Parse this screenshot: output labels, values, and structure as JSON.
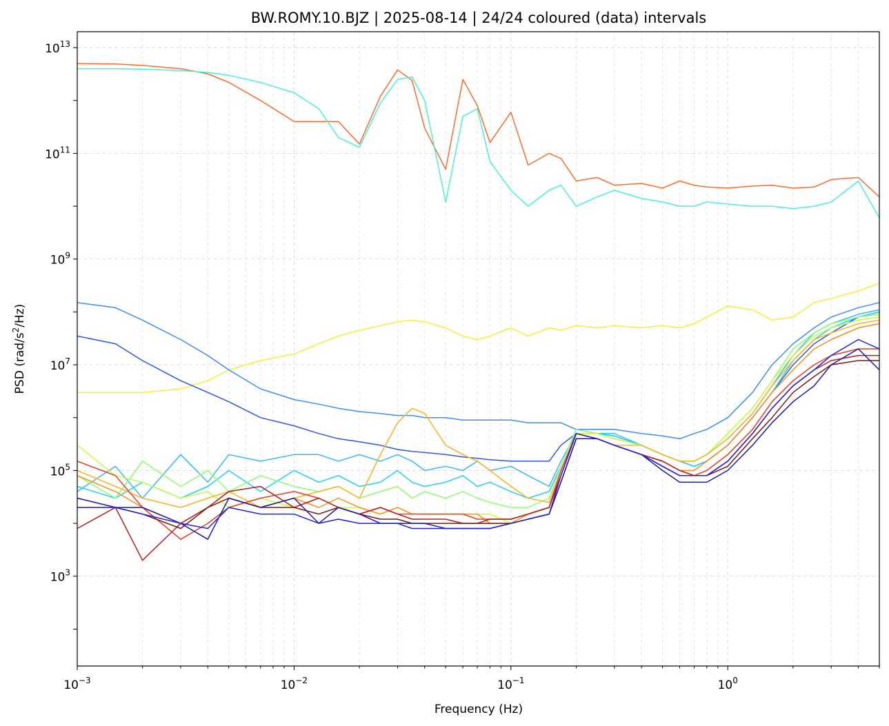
{
  "chart_data": {
    "type": "line",
    "title": "BW.ROMY.10.BJZ | 2025-08-14 | 24/24 coloured (data) intervals",
    "xlabel": "Frequency (Hz)",
    "ylabel": "PSD (rad/s²/Hz)",
    "xscale": "log",
    "yscale": "log",
    "xlim": [
      0.001,
      5.0
    ],
    "ylim": [
      20.0,
      20000000000000.0
    ],
    "grid": true,
    "legend": "none",
    "x_ticks": [
      {
        "value": 0.001,
        "base": "10",
        "exp": "−3"
      },
      {
        "value": 0.01,
        "base": "10",
        "exp": "−2"
      },
      {
        "value": 0.1,
        "base": "10",
        "exp": "−1"
      },
      {
        "value": 1,
        "base": "10",
        "exp": "0"
      }
    ],
    "y_ticks": [
      {
        "value": 1000,
        "base": "10",
        "exp": "3"
      },
      {
        "value": 100000,
        "base": "10",
        "exp": "5"
      },
      {
        "value": 10000000,
        "base": "10",
        "exp": "7"
      },
      {
        "value": 1000000000,
        "base": "10",
        "exp": "9"
      },
      {
        "value": 100000000000,
        "base": "10",
        "exp": "11"
      },
      {
        "value": 10000000000000,
        "base": "10",
        "exp": "13"
      }
    ],
    "x": [
      0.001,
      0.0015,
      0.002,
      0.003,
      0.004,
      0.005,
      0.007,
      0.01,
      0.013,
      0.016,
      0.02,
      0.025,
      0.03,
      0.035,
      0.04,
      0.05,
      0.06,
      0.07,
      0.08,
      0.1,
      0.12,
      0.15,
      0.17,
      0.2,
      0.25,
      0.3,
      0.4,
      0.5,
      0.6,
      0.7,
      0.8,
      1.0,
      1.3,
      1.6,
      2.0,
      2.5,
      3.0,
      4.0,
      5.0
    ],
    "series": [
      {
        "color": "#ff6a2a",
        "values": [
          5000000000000.0,
          4900000000000.0,
          4600000000000.0,
          4000000000000.0,
          3200000000000.0,
          2200000000000.0,
          1000000000000.0,
          400000000000.0,
          400000000000.0,
          400000000000.0,
          150000000000.0,
          1200000000000.0,
          3800000000000.0,
          2400000000000.0,
          300000000000.0,
          50000000000.0,
          2500000000000.0,
          800000000000.0,
          160000000000.0,
          600000000000.0,
          60000000000.0,
          100000000000.0,
          80000000000.0,
          30000000000.0,
          35000000000.0,
          25000000000.0,
          27000000000.0,
          22000000000.0,
          30000000000.0,
          25000000000.0,
          23000000000.0,
          22000000000.0,
          24000000000.0,
          25000000000.0,
          22000000000.0,
          23000000000.0,
          32000000000.0,
          35000000000.0,
          15000000000.0
        ]
      },
      {
        "color": "#48f2d4",
        "values": [
          4000000000000.0,
          4000000000000.0,
          3900000000000.0,
          3700000000000.0,
          3400000000000.0,
          3000000000000.0,
          2200000000000.0,
          1400000000000.0,
          700000000000.0,
          200000000000.0,
          130000000000.0,
          900000000000.0,
          2500000000000.0,
          2800000000000.0,
          1000000000000.0,
          12000000000.0,
          500000000000.0,
          700000000000.0,
          70000000000.0,
          20000000000.0,
          10000000000.0,
          20000000000.0,
          25000000000.0,
          10000000000.0,
          15000000000.0,
          20000000000.0,
          14000000000.0,
          12000000000.0,
          10000000000.0,
          10000000000.0,
          12000000000.0,
          11000000000.0,
          10000000000.0,
          10000000000.0,
          9000000000.0,
          10000000000.0,
          12000000000.0,
          30000000000.0,
          6000000000.0
        ]
      },
      {
        "color": "#f2f233",
        "values": [
          3000000.0,
          3000000.0,
          3000000.0,
          3500000.0,
          5000000.0,
          8000000.0,
          12000000.0,
          16000000.0,
          25000000.0,
          35000000.0,
          45000000.0,
          55000000.0,
          65000000.0,
          70000000.0,
          65000000.0,
          50000000.0,
          35000000.0,
          30000000.0,
          35000000.0,
          50000000.0,
          35000000.0,
          50000000.0,
          45000000.0,
          55000000.0,
          50000000.0,
          55000000.0,
          50000000.0,
          55000000.0,
          50000000.0,
          60000000.0,
          80000000.0,
          130000000.0,
          110000000.0,
          70000000.0,
          80000000.0,
          150000000.0,
          180000000.0,
          250000000.0,
          350000000.0
        ]
      },
      {
        "color": "#3d8bff",
        "values": [
          150000000.0,
          120000000.0,
          70000000.0,
          30000000.0,
          15000000.0,
          8000000.0,
          3500000.0,
          2200000.0,
          1800000.0,
          1500000.0,
          1300000.0,
          1200000.0,
          1100000.0,
          1100000.0,
          1000000.0,
          1000000.0,
          900000.0,
          900000.0,
          900000.0,
          900000.0,
          800000.0,
          800000.0,
          800000.0,
          600000.0,
          600000.0,
          600000.0,
          500000.0,
          450000.0,
          400000.0,
          500000.0,
          600000.0,
          1000000.0,
          3000000.0,
          10000000.0,
          25000000.0,
          50000000.0,
          80000000.0,
          120000000.0,
          150000000.0
        ]
      },
      {
        "color": "#2d55e8",
        "values": [
          35000000.0,
          25000000.0,
          12000000.0,
          5000000.0,
          3000000.0,
          2000000.0,
          1000000.0,
          700000.0,
          500000.0,
          400000.0,
          350000.0,
          300000.0,
          250000.0,
          230000.0,
          220000.0,
          200000.0,
          180000.0,
          170000.0,
          160000.0,
          150000.0,
          150000.0,
          150000.0,
          300000.0,
          500000.0,
          500000.0,
          400000.0,
          300000.0,
          200000.0,
          150000.0,
          120000.0,
          150000.0,
          300000.0,
          1000000.0,
          3000000.0,
          10000000.0,
          25000000.0,
          40000000.0,
          80000000.0,
          100000000.0
        ]
      },
      {
        "color": "#35b8ff",
        "values": [
          40000.0,
          120000.0,
          30000.0,
          200000.0,
          60000.0,
          200000.0,
          150000.0,
          200000.0,
          200000.0,
          150000.0,
          200000.0,
          150000.0,
          200000.0,
          150000.0,
          100000.0,
          120000.0,
          100000.0,
          150000.0,
          100000.0,
          120000.0,
          80000.0,
          50000.0,
          150000.0,
          500000.0,
          500000.0,
          450000.0,
          300000.0,
          200000.0,
          150000.0,
          150000.0,
          200000.0,
          400000.0,
          1200000.0,
          4000000.0,
          15000000.0,
          40000000.0,
          60000000.0,
          90000000.0,
          110000000.0
        ]
      },
      {
        "color": "#22d0f5",
        "values": [
          50000.0,
          30000.0,
          60000.0,
          30000.0,
          50000.0,
          100000.0,
          40000.0,
          100000.0,
          60000.0,
          80000.0,
          50000.0,
          60000.0,
          100000.0,
          60000.0,
          50000.0,
          60000.0,
          80000.0,
          50000.0,
          60000.0,
          40000.0,
          30000.0,
          40000.0,
          120000.0,
          600000.0,
          500000.0,
          500000.0,
          300000.0,
          200000.0,
          150000.0,
          120000.0,
          150000.0,
          300000.0,
          1000000.0,
          3000000.0,
          12000000.0,
          30000000.0,
          50000000.0,
          80000000.0,
          100000000.0
        ]
      },
      {
        "color": "#8cff6b",
        "values": [
          80000.0,
          30000.0,
          150000.0,
          50000.0,
          100000.0,
          40000.0,
          80000.0,
          50000.0,
          40000.0,
          50000.0,
          30000.0,
          40000.0,
          50000.0,
          30000.0,
          40000.0,
          30000.0,
          40000.0,
          30000.0,
          25000.0,
          20000.0,
          20000.0,
          30000.0,
          120000.0,
          600000.0,
          500000.0,
          400000.0,
          300000.0,
          200000.0,
          150000.0,
          150000.0,
          200000.0,
          500000.0,
          1500000.0,
          5000000.0,
          20000000.0,
          40000000.0,
          60000000.0,
          80000000.0,
          90000000.0
        ]
      },
      {
        "color": "#c4ff3d",
        "values": [
          300000.0,
          80000.0,
          60000.0,
          30000.0,
          40000.0,
          20000.0,
          30000.0,
          20000.0,
          30000.0,
          20000.0,
          20000.0,
          15000.0,
          20000.0,
          15000.0,
          15000.0,
          15000.0,
          15000.0,
          15000.0,
          15000.0,
          10000.0,
          15000.0,
          20000.0,
          100000.0,
          500000.0,
          500000.0,
          400000.0,
          300000.0,
          200000.0,
          150000.0,
          150000.0,
          200000.0,
          500000.0,
          1500000.0,
          5000000.0,
          15000000.0,
          35000000.0,
          50000000.0,
          70000000.0,
          80000000.0
        ]
      },
      {
        "color": "#ffb020",
        "values": [
          100000.0,
          50000.0,
          30000.0,
          20000.0,
          30000.0,
          40000.0,
          20000.0,
          30000.0,
          40000.0,
          50000.0,
          30000.0,
          200000.0,
          800000.0,
          1500000.0,
          1200000.0,
          300000.0,
          200000.0,
          150000.0,
          100000.0,
          50000.0,
          30000.0,
          25000.0,
          100000.0,
          500000.0,
          400000.0,
          300000.0,
          300000.0,
          200000.0,
          150000.0,
          150000.0,
          200000.0,
          400000.0,
          1200000.0,
          4000000.0,
          12000000.0,
          30000000.0,
          40000000.0,
          60000000.0,
          70000000.0
        ]
      },
      {
        "color": "#ff8c1a",
        "values": [
          80000.0,
          40000.0,
          20000.0,
          10000.0,
          20000.0,
          30000.0,
          20000.0,
          30000.0,
          20000.0,
          30000.0,
          20000.0,
          15000.0,
          20000.0,
          15000.0,
          15000.0,
          15000.0,
          15000.0,
          15000.0,
          10000.0,
          10000.0,
          15000.0,
          20000.0,
          100000.0,
          500000.0,
          400000.0,
          300000.0,
          200000.0,
          150000.0,
          100000.0,
          100000.0,
          150000.0,
          300000.0,
          1000000.0,
          3000000.0,
          8000000.0,
          20000000.0,
          30000000.0,
          50000000.0,
          60000000.0
        ]
      },
      {
        "color": "#e83b1f",
        "values": [
          150000.0,
          80000.0,
          20000.0,
          5000.0,
          10000.0,
          20000.0,
          30000.0,
          40000.0,
          30000.0,
          20000.0,
          15000.0,
          20000.0,
          15000.0,
          15000.0,
          15000.0,
          15000.0,
          15000.0,
          12000.0,
          12000.0,
          12000.0,
          15000.0,
          20000.0,
          100000.0,
          500000.0,
          400000.0,
          300000.0,
          200000.0,
          150000.0,
          100000.0,
          80000.0,
          100000.0,
          200000.0,
          600000.0,
          2000000.0,
          5000000.0,
          10000000.0,
          15000000.0,
          20000000.0,
          20000000.0
        ]
      },
      {
        "color": "#b81a1a",
        "values": [
          8000.0,
          20000.0,
          2000.0,
          10000.0,
          20000.0,
          40000.0,
          50000.0,
          20000.0,
          30000.0,
          20000.0,
          15000.0,
          20000.0,
          15000.0,
          12000.0,
          12000.0,
          12000.0,
          10000.0,
          10000.0,
          12000.0,
          12000.0,
          15000.0,
          20000.0,
          80000.0,
          500000.0,
          400000.0,
          300000.0,
          200000.0,
          150000.0,
          100000.0,
          80000.0,
          80000.0,
          150000.0,
          500000.0,
          1500000.0,
          4000000.0,
          8000000.0,
          12000000.0,
          15000000.0,
          15000000.0
        ]
      },
      {
        "color": "#7d1510",
        "values": [
          30000.0,
          20000.0,
          15000.0,
          8000.0,
          20000.0,
          30000.0,
          20000.0,
          20000.0,
          15000.0,
          20000.0,
          15000.0,
          12000.0,
          12000.0,
          10000.0,
          10000.0,
          10000.0,
          10000.0,
          10000.0,
          10000.0,
          10000.0,
          12000.0,
          15000.0,
          60000.0,
          400000.0,
          400000.0,
          300000.0,
          200000.0,
          120000.0,
          80000.0,
          80000.0,
          80000.0,
          120000.0,
          400000.0,
          1000000.0,
          3000000.0,
          6000000.0,
          10000000.0,
          12000000.0,
          12000000.0
        ]
      },
      {
        "color": "#1a1aa8",
        "values": [
          20000.0,
          20000.0,
          20000.0,
          10000.0,
          5000.0,
          30000.0,
          20000.0,
          30000.0,
          10000.0,
          20000.0,
          15000.0,
          10000.0,
          10000.0,
          10000.0,
          10000.0,
          8000.0,
          8000.0,
          8000.0,
          8000.0,
          10000.0,
          12000.0,
          15000.0,
          60000.0,
          400000.0,
          400000.0,
          300000.0,
          200000.0,
          100000.0,
          60000.0,
          60000.0,
          60000.0,
          100000.0,
          300000.0,
          800000.0,
          2000000.0,
          4000000.0,
          10000000.0,
          20000000.0,
          8000000.0
        ]
      },
      {
        "color": "#1f1fe0",
        "values": [
          30000.0,
          20000.0,
          15000.0,
          10000.0,
          8000.0,
          20000.0,
          15000.0,
          15000.0,
          10000.0,
          12000.0,
          10000.0,
          10000.0,
          10000.0,
          8000.0,
          8000.0,
          8000.0,
          8000.0,
          8000.0,
          8000.0,
          10000.0,
          12000.0,
          15000.0,
          80000.0,
          500000.0,
          400000.0,
          300000.0,
          200000.0,
          120000.0,
          80000.0,
          80000.0,
          80000.0,
          150000.0,
          500000.0,
          1500000.0,
          4000000.0,
          8000000.0,
          15000000.0,
          30000000.0,
          20000000.0
        ]
      }
    ]
  }
}
